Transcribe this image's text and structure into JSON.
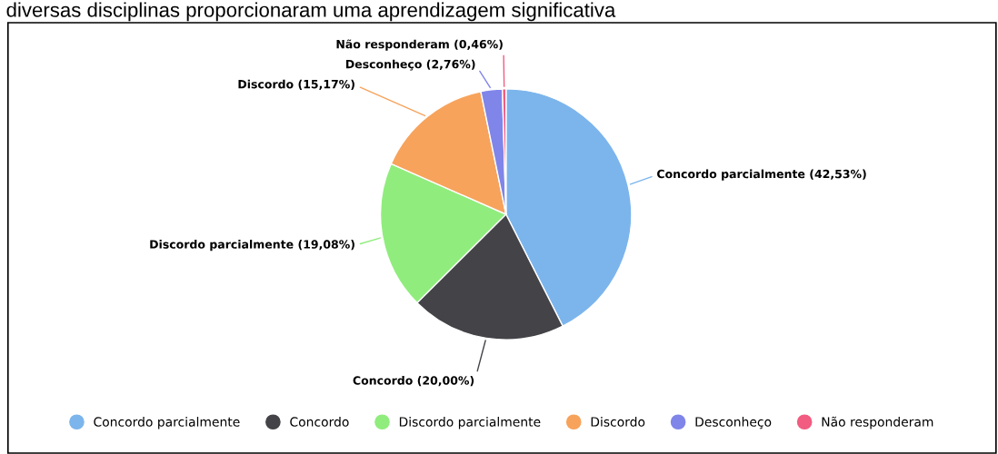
{
  "chart_data": {
    "type": "pie",
    "title": "diversas disciplinas proporcionaram uma aprendizagem significativa",
    "categories": [
      "Concordo parcialmente",
      "Concordo",
      "Discordo parcialmente",
      "Discordo",
      "Desconheço",
      "Não responderam"
    ],
    "values": [
      42.53,
      20.0,
      19.08,
      15.17,
      2.76,
      0.46
    ],
    "value_labels": [
      "Concordo parcialmente (42,53%)",
      "Concordo (20,00%)",
      "Discordo parcialmente (19,08%)",
      "Discordo (15,17%)",
      "Desconheço (2,76%)",
      "Não responderam (0,46%)"
    ],
    "colors": [
      "#7cb5ec",
      "#434348",
      "#90ed7d",
      "#f7a35c",
      "#8085e9",
      "#f15c80"
    ],
    "legend": "bottom"
  }
}
